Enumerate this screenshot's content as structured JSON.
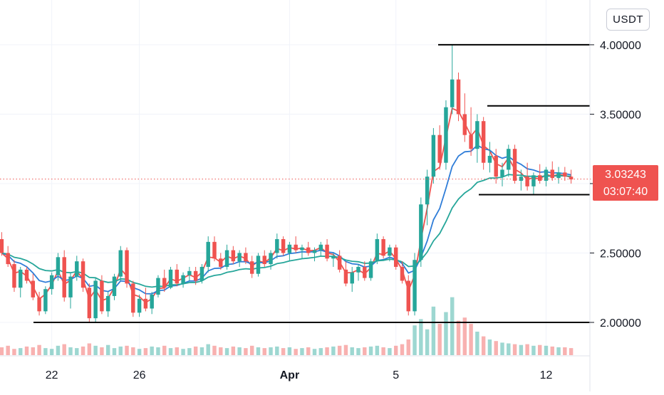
{
  "toolbar": {
    "currency": "USDT"
  },
  "price_tag": {
    "value": "3.03243",
    "countdown": "03:07:40"
  },
  "colors": {
    "up": "#26a69a",
    "down": "#ef5350",
    "ma_fast": "#ef5350",
    "ma_mid": "#2f7dd8",
    "ma_slow": "#26a69a",
    "level_line": "#000000",
    "grid": "#f0f3fa"
  },
  "chart_data": {
    "type": "candlestick",
    "y_axis": {
      "ticks": [
        "2.00000",
        "2.50000",
        "3.00000",
        "3.50000",
        "4.00000"
      ],
      "range": [
        1.8,
        4.22
      ]
    },
    "x_axis": {
      "ticks": [
        "22",
        "26",
        "Apr",
        "5",
        "12"
      ]
    },
    "current_price": 3.03243,
    "horizontal_levels": [
      {
        "price": 4.0,
        "x_from": "Apr 8",
        "x_to": "end"
      },
      {
        "price": 3.56,
        "x_from": "Apr 10",
        "x_to": "end"
      },
      {
        "price": 2.92,
        "x_from": "Apr 10",
        "x_to": "end"
      },
      {
        "price": 2.0,
        "x_from": "Mar 22",
        "x_to": "end"
      }
    ],
    "candles": [
      [
        2.6,
        2.65,
        2.48,
        2.5
      ],
      [
        2.5,
        2.55,
        2.4,
        2.42
      ],
      [
        2.42,
        2.45,
        2.22,
        2.25
      ],
      [
        2.25,
        2.4,
        2.18,
        2.38
      ],
      [
        2.38,
        2.4,
        2.28,
        2.3
      ],
      [
        2.3,
        2.35,
        2.16,
        2.18
      ],
      [
        2.18,
        2.22,
        2.05,
        2.08
      ],
      [
        2.08,
        2.26,
        2.06,
        2.24
      ],
      [
        2.24,
        2.36,
        2.2,
        2.34
      ],
      [
        2.34,
        2.5,
        2.3,
        2.47
      ],
      [
        2.47,
        2.52,
        2.15,
        2.18
      ],
      [
        2.18,
        2.36,
        2.1,
        2.33
      ],
      [
        2.33,
        2.48,
        2.3,
        2.44
      ],
      [
        2.44,
        2.46,
        2.22,
        2.25
      ],
      [
        2.25,
        2.28,
        2.0,
        2.03
      ],
      [
        2.03,
        2.32,
        2.0,
        2.3
      ],
      [
        2.3,
        2.34,
        2.06,
        2.08
      ],
      [
        2.08,
        2.22,
        2.04,
        2.19
      ],
      [
        2.19,
        2.35,
        2.16,
        2.33
      ],
      [
        2.33,
        2.55,
        2.3,
        2.52
      ],
      [
        2.52,
        2.54,
        2.25,
        2.28
      ],
      [
        2.28,
        2.3,
        2.04,
        2.07
      ],
      [
        2.07,
        2.2,
        2.04,
        2.17
      ],
      [
        2.17,
        2.25,
        2.08,
        2.1
      ],
      [
        2.1,
        2.22,
        2.06,
        2.2
      ],
      [
        2.2,
        2.34,
        2.18,
        2.32
      ],
      [
        2.32,
        2.38,
        2.22,
        2.25
      ],
      [
        2.25,
        2.4,
        2.24,
        2.38
      ],
      [
        2.38,
        2.42,
        2.26,
        2.28
      ],
      [
        2.28,
        2.36,
        2.25,
        2.34
      ],
      [
        2.34,
        2.4,
        2.3,
        2.37
      ],
      [
        2.37,
        2.4,
        2.27,
        2.3
      ],
      [
        2.3,
        2.42,
        2.28,
        2.4
      ],
      [
        2.4,
        2.62,
        2.36,
        2.58
      ],
      [
        2.58,
        2.62,
        2.44,
        2.46
      ],
      [
        2.46,
        2.5,
        2.38,
        2.4
      ],
      [
        2.4,
        2.56,
        2.38,
        2.52
      ],
      [
        2.52,
        2.55,
        2.42,
        2.44
      ],
      [
        2.44,
        2.52,
        2.4,
        2.5
      ],
      [
        2.5,
        2.54,
        2.42,
        2.44
      ],
      [
        2.44,
        2.48,
        2.32,
        2.35
      ],
      [
        2.35,
        2.5,
        2.33,
        2.48
      ],
      [
        2.48,
        2.52,
        2.4,
        2.42
      ],
      [
        2.42,
        2.52,
        2.38,
        2.5
      ],
      [
        2.5,
        2.64,
        2.46,
        2.6
      ],
      [
        2.6,
        2.62,
        2.48,
        2.5
      ],
      [
        2.5,
        2.58,
        2.44,
        2.56
      ],
      [
        2.56,
        2.62,
        2.5,
        2.52
      ],
      [
        2.52,
        2.56,
        2.46,
        2.54
      ],
      [
        2.54,
        2.58,
        2.48,
        2.5
      ],
      [
        2.5,
        2.54,
        2.44,
        2.52
      ],
      [
        2.52,
        2.58,
        2.48,
        2.56
      ],
      [
        2.56,
        2.6,
        2.44,
        2.46
      ],
      [
        2.46,
        2.5,
        2.4,
        2.48
      ],
      [
        2.48,
        2.52,
        2.36,
        2.38
      ],
      [
        2.38,
        2.44,
        2.26,
        2.28
      ],
      [
        2.28,
        2.4,
        2.22,
        2.36
      ],
      [
        2.36,
        2.42,
        2.3,
        2.4
      ],
      [
        2.4,
        2.44,
        2.3,
        2.32
      ],
      [
        2.32,
        2.46,
        2.3,
        2.44
      ],
      [
        2.44,
        2.64,
        2.42,
        2.6
      ],
      [
        2.6,
        2.62,
        2.46,
        2.48
      ],
      [
        2.48,
        2.56,
        2.44,
        2.54
      ],
      [
        2.54,
        2.56,
        2.38,
        2.4
      ],
      [
        2.4,
        2.44,
        2.28,
        2.3
      ],
      [
        2.3,
        2.34,
        2.05,
        2.08
      ],
      [
        2.08,
        2.5,
        2.05,
        2.45
      ],
      [
        2.45,
        2.9,
        2.4,
        2.85
      ],
      [
        2.85,
        3.1,
        2.7,
        3.05
      ],
      [
        3.05,
        3.4,
        3.0,
        3.35
      ],
      [
        3.35,
        3.42,
        3.1,
        3.15
      ],
      [
        3.15,
        3.6,
        3.1,
        3.55
      ],
      [
        3.55,
        4.0,
        3.5,
        3.75
      ],
      [
        3.75,
        3.8,
        3.45,
        3.5
      ],
      [
        3.5,
        3.65,
        3.3,
        3.35
      ],
      [
        3.35,
        3.55,
        3.2,
        3.25
      ],
      [
        3.25,
        3.5,
        3.15,
        3.45
      ],
      [
        3.45,
        3.48,
        3.1,
        3.15
      ],
      [
        3.15,
        3.3,
        3.08,
        3.2
      ],
      [
        3.2,
        3.25,
        3.0,
        3.05
      ],
      [
        3.05,
        3.15,
        2.98,
        3.1
      ],
      [
        3.1,
        3.28,
        3.05,
        3.25
      ],
      [
        3.25,
        3.28,
        3.0,
        3.02
      ],
      [
        3.02,
        3.1,
        2.95,
        3.05
      ],
      [
        3.05,
        3.15,
        2.95,
        2.98
      ],
      [
        2.98,
        3.08,
        2.92,
        3.06
      ],
      [
        3.06,
        3.14,
        3.0,
        3.02
      ],
      [
        3.02,
        3.12,
        2.98,
        3.1
      ],
      [
        3.1,
        3.16,
        3.02,
        3.04
      ],
      [
        3.04,
        3.12,
        3.0,
        3.08
      ],
      [
        3.08,
        3.12,
        3.02,
        3.05
      ],
      [
        3.05,
        3.1,
        3.0,
        3.03
      ]
    ],
    "volumes": [
      0.1,
      0.12,
      0.08,
      0.09,
      0.11,
      0.1,
      0.13,
      0.09,
      0.08,
      0.12,
      0.14,
      0.1,
      0.09,
      0.11,
      0.15,
      0.12,
      0.1,
      0.13,
      0.09,
      0.11,
      0.12,
      0.1,
      0.08,
      0.09,
      0.11,
      0.1,
      0.12,
      0.09,
      0.1,
      0.08,
      0.09,
      0.11,
      0.1,
      0.14,
      0.12,
      0.1,
      0.09,
      0.11,
      0.1,
      0.09,
      0.12,
      0.1,
      0.09,
      0.1,
      0.11,
      0.09,
      0.1,
      0.08,
      0.09,
      0.1,
      0.08,
      0.09,
      0.1,
      0.11,
      0.12,
      0.13,
      0.1,
      0.09,
      0.1,
      0.11,
      0.12,
      0.1,
      0.09,
      0.12,
      0.14,
      0.2,
      0.38,
      0.46,
      0.33,
      0.62,
      0.4,
      0.55,
      0.74,
      0.44,
      0.48,
      0.4,
      0.3,
      0.24,
      0.2,
      0.18,
      0.16,
      0.15,
      0.14,
      0.13,
      0.14,
      0.12,
      0.13,
      0.12,
      0.11,
      0.1,
      0.1,
      0.09
    ]
  }
}
